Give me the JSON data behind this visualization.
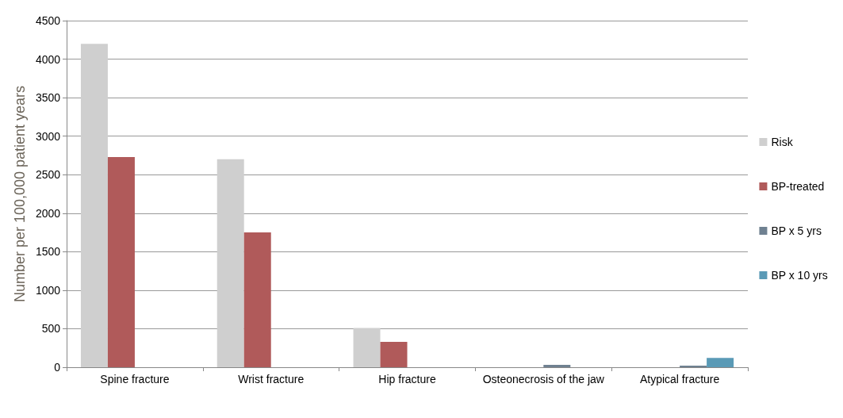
{
  "chart_data": {
    "type": "bar",
    "ylabel": "Number per 100,000 patient years",
    "categories": [
      "Spine fracture",
      "Wrist fracture",
      "Hip fracture",
      "Osteonecrosis of the jaw",
      "Atypical fracture"
    ],
    "series": [
      {
        "name": "Risk",
        "color": "#cfcfcf",
        "values": [
          4200,
          2700,
          510,
          null,
          null
        ]
      },
      {
        "name": "BP-treated",
        "color": "#b05a5a",
        "values": [
          2730,
          1750,
          330,
          null,
          null
        ]
      },
      {
        "name": "BP x 5 yrs",
        "color": "#6f8191",
        "values": [
          null,
          null,
          null,
          30,
          20
        ]
      },
      {
        "name": "BP x 10 yrs",
        "color": "#5a9ab6",
        "values": [
          null,
          null,
          null,
          null,
          120
        ]
      }
    ],
    "ylim": [
      0,
      4500
    ],
    "yticks": [
      0,
      500,
      1000,
      1500,
      2000,
      2500,
      3000,
      3500,
      4000,
      4500
    ],
    "grid": "y",
    "legend": "right"
  }
}
